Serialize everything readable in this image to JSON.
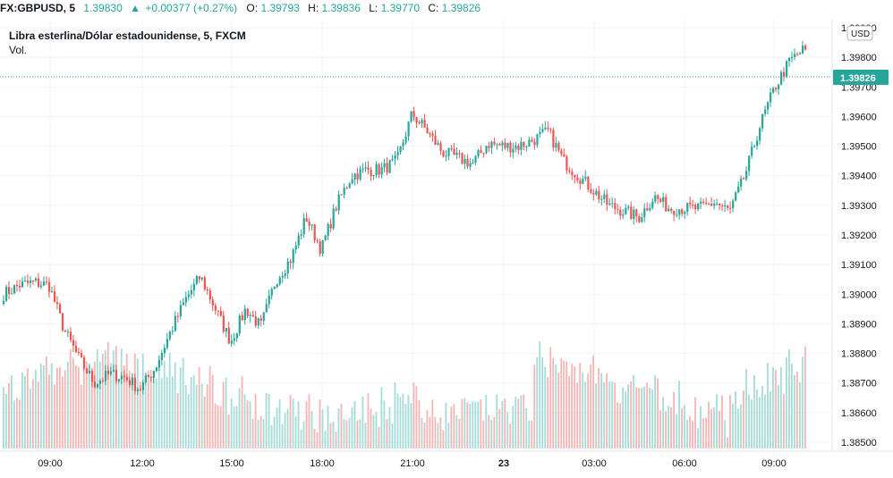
{
  "header": {
    "symbol": "FX:GBPUSD, 5",
    "last": "1.39830",
    "change": "+0.00377 (+0.27%)",
    "o_label": "O:",
    "o_value": "1.39793",
    "h_label": "H:",
    "h_value": "1.39836",
    "l_label": "L:",
    "l_value": "1.39770",
    "c_label": "C:",
    "c_value": "1.39826"
  },
  "legend": {
    "title": "Libra esterlina/Dólar estadounidense, 5, FXCM",
    "volume": "Vol."
  },
  "currency_button": "USD",
  "current_price_label": "1.39826",
  "colors": {
    "up": "#26a69a",
    "down": "#ef5350",
    "vol_up": "#a6dcd7",
    "vol_down": "#f5b5b3",
    "grid": "#f0f3fa",
    "axis_text": "#131722"
  },
  "chart_data": {
    "type": "candlestick",
    "symbol": "GBPUSD",
    "interval": "5",
    "y_ticks": [
      "1.38500",
      "1.38600",
      "1.38700",
      "1.38800",
      "1.38900",
      "1.39000",
      "1.39100",
      "1.39200",
      "1.39300",
      "1.39400",
      "1.39500",
      "1.39600",
      "1.39700",
      "1.39800",
      "1.39900"
    ],
    "ylim": [
      1.3848,
      1.4001
    ],
    "x_ticks": [
      "09:00",
      "12:00",
      "15:00",
      "18:00",
      "21:00",
      "23",
      "03:00",
      "06:00",
      "09:00"
    ],
    "current_price": 1.39826,
    "close_path": [
      {
        "t": "08:00",
        "p": 1.39
      },
      {
        "t": "08:30",
        "p": 1.3903
      },
      {
        "t": "09:00",
        "p": 1.3904
      },
      {
        "t": "09:30",
        "p": 1.3903
      },
      {
        "t": "10:00",
        "p": 1.3888
      },
      {
        "t": "10:30",
        "p": 1.3878
      },
      {
        "t": "11:00",
        "p": 1.387
      },
      {
        "t": "11:30",
        "p": 1.3873
      },
      {
        "t": "12:00",
        "p": 1.3872
      },
      {
        "t": "12:30",
        "p": 1.3868
      },
      {
        "t": "13:00",
        "p": 1.3875
      },
      {
        "t": "13:30",
        "p": 1.3887
      },
      {
        "t": "14:00",
        "p": 1.3898
      },
      {
        "t": "14:30",
        "p": 1.3906
      },
      {
        "t": "15:00",
        "p": 1.3895
      },
      {
        "t": "15:30",
        "p": 1.3884
      },
      {
        "t": "16:00",
        "p": 1.3895
      },
      {
        "t": "16:30",
        "p": 1.3889
      },
      {
        "t": "17:00",
        "p": 1.3905
      },
      {
        "t": "17:30",
        "p": 1.3912
      },
      {
        "t": "18:00",
        "p": 1.3926
      },
      {
        "t": "18:30",
        "p": 1.3915
      },
      {
        "t": "19:00",
        "p": 1.393
      },
      {
        "t": "19:30",
        "p": 1.394
      },
      {
        "t": "20:00",
        "p": 1.3942
      },
      {
        "t": "20:30",
        "p": 1.3942
      },
      {
        "t": "21:00",
        "p": 1.3945
      },
      {
        "t": "21:10",
        "p": 1.3961
      },
      {
        "t": "21:30",
        "p": 1.3955
      },
      {
        "t": "22:00",
        "p": 1.3948
      },
      {
        "t": "22:30",
        "p": 1.3946
      },
      {
        "t": "23:00",
        "p": 1.3944
      },
      {
        "t": "23:30",
        "p": 1.3951
      },
      {
        "t": "00:00",
        "p": 1.395
      },
      {
        "t": "00:30",
        "p": 1.395
      },
      {
        "t": "01:00",
        "p": 1.3952
      },
      {
        "t": "01:30",
        "p": 1.3955
      },
      {
        "t": "02:00",
        "p": 1.3945
      },
      {
        "t": "02:30",
        "p": 1.394
      },
      {
        "t": "03:00",
        "p": 1.3935
      },
      {
        "t": "03:30",
        "p": 1.393
      },
      {
        "t": "04:00",
        "p": 1.3928
      },
      {
        "t": "04:30",
        "p": 1.3926
      },
      {
        "t": "05:00",
        "p": 1.3933
      },
      {
        "t": "05:30",
        "p": 1.3929
      },
      {
        "t": "06:00",
        "p": 1.3929
      },
      {
        "t": "06:30",
        "p": 1.3929
      },
      {
        "t": "07:00",
        "p": 1.3931
      },
      {
        "t": "07:30",
        "p": 1.3928
      },
      {
        "t": "08:00",
        "p": 1.394
      },
      {
        "t": "08:30",
        "p": 1.3957
      },
      {
        "t": "09:00",
        "p": 1.397
      },
      {
        "t": "09:30",
        "p": 1.3979
      },
      {
        "t": "09:40",
        "p": 1.3983
      }
    ]
  }
}
